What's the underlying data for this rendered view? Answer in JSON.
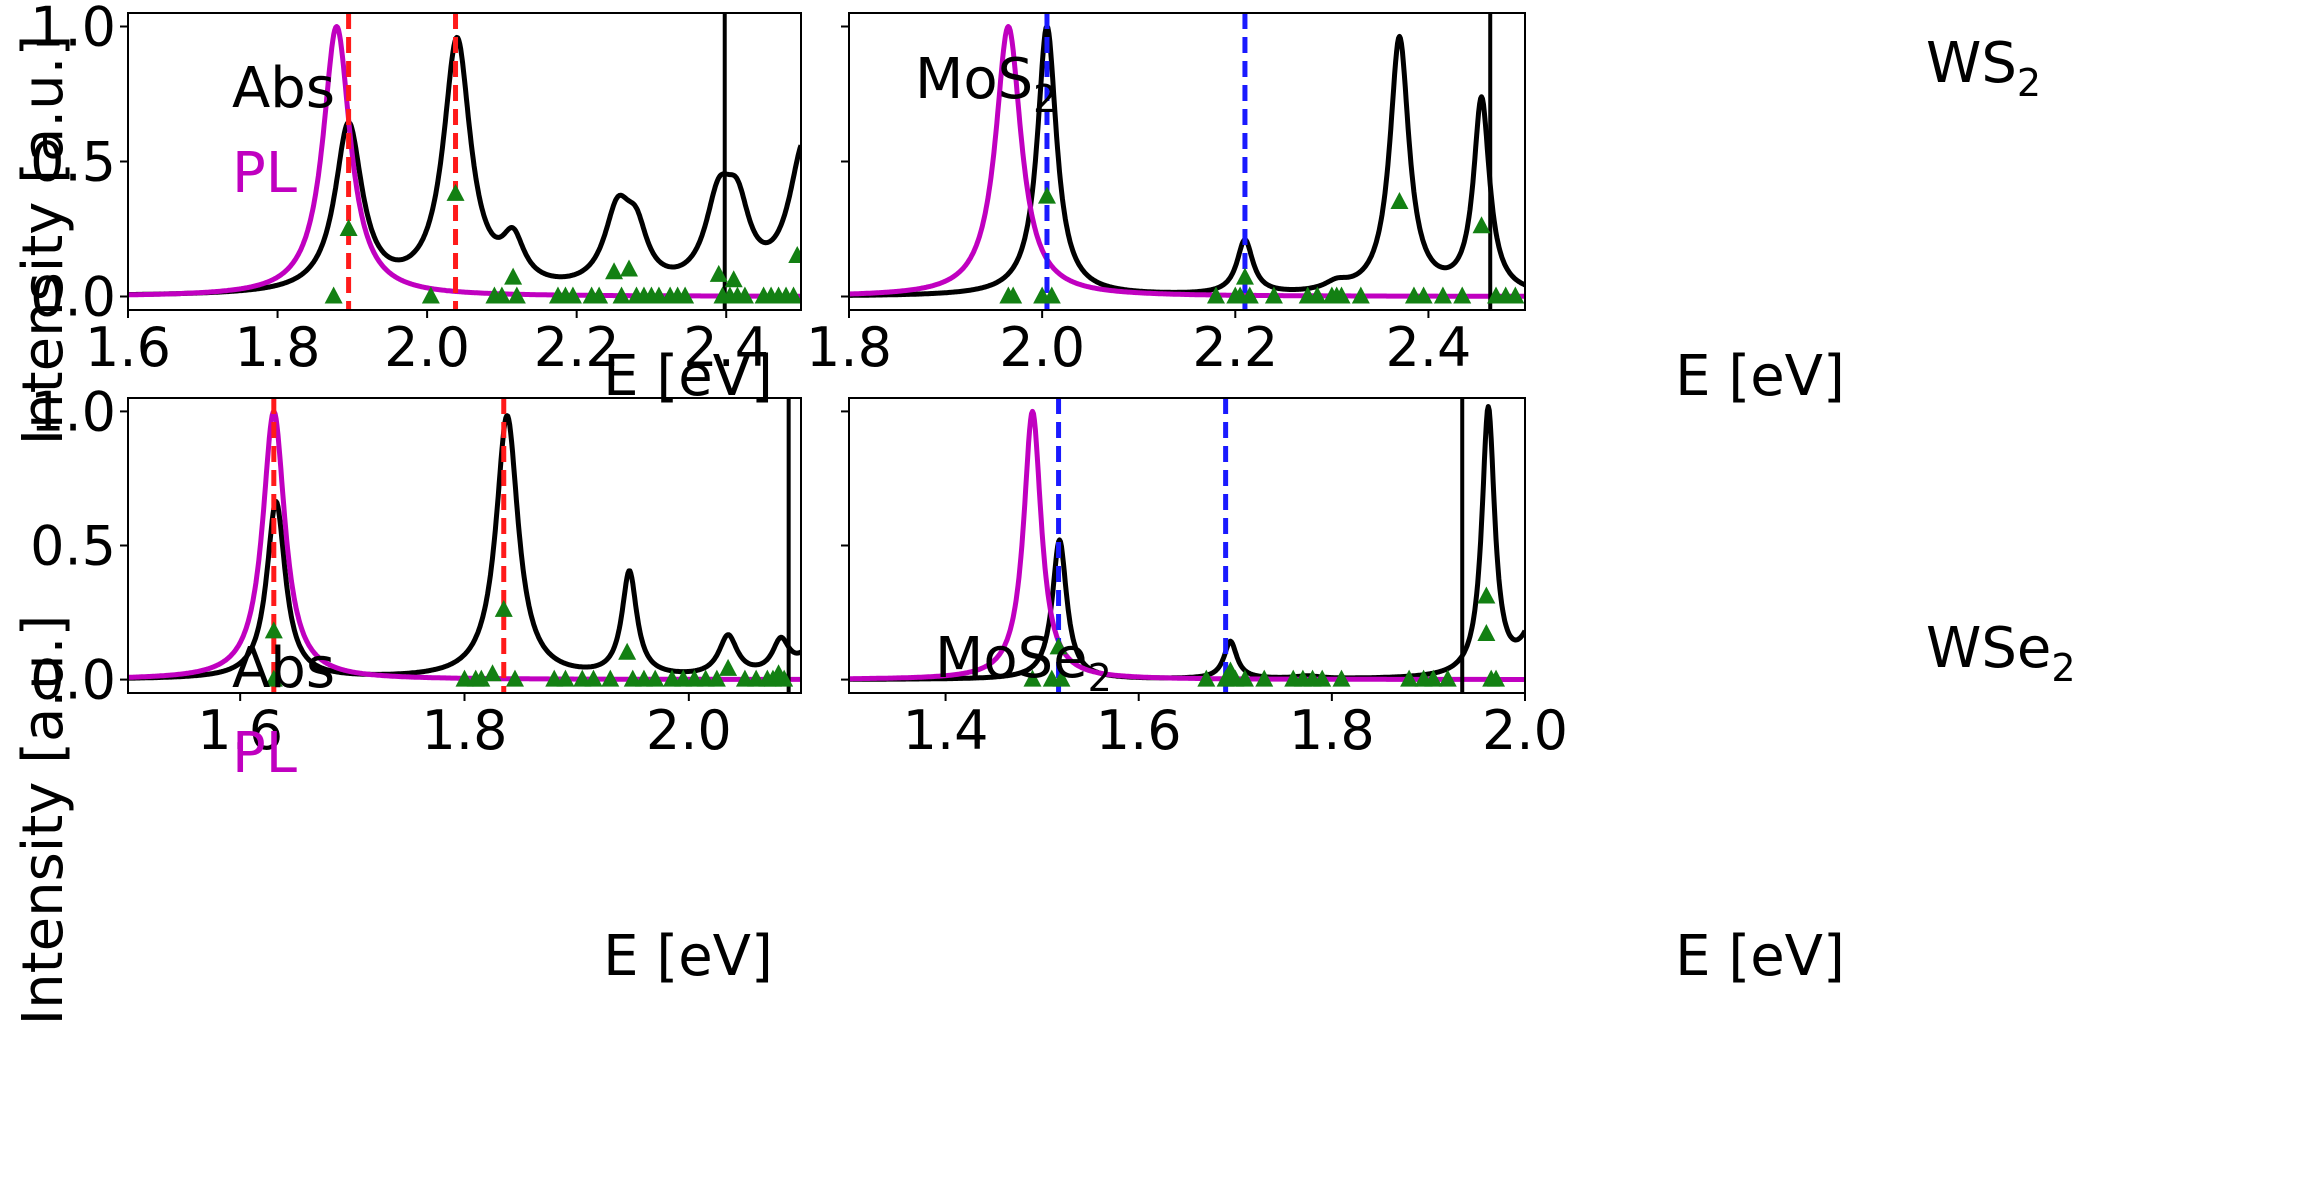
{
  "figure": {
    "ylabel": "Intensity [a.u.]",
    "xlabel": "E [eV]",
    "legend": {
      "abs": "Abs",
      "pl": "PL"
    }
  },
  "colors": {
    "abs": "#000000",
    "pl": "#c000c0",
    "marker": "#138013",
    "red_line": "#ff1a1a",
    "blue_line": "#1a1aff"
  },
  "chart_data": [
    {
      "type": "line",
      "material": "MoS",
      "subscript": "2",
      "xlabel": "E [eV]",
      "ylabel": "Intensity [a.u.]",
      "xlim": [
        1.6,
        2.5
      ],
      "ylim": [
        -0.05,
        1.05
      ],
      "xticks": [
        1.6,
        1.8,
        2.0,
        2.2,
        2.4
      ],
      "xtick_labels": [
        "1.6",
        "1.8",
        "2.0",
        "2.2",
        "2.4"
      ],
      "yticks": [
        0.0,
        0.5,
        1.0
      ],
      "ytick_labels": [
        "0.0",
        "0.5",
        "1.0"
      ],
      "show_ylabels": true,
      "legend": "top-left",
      "abs_peaks": [
        [
          1.895,
          0.62,
          0.022
        ],
        [
          2.04,
          0.93,
          0.022
        ],
        [
          2.115,
          0.16,
          0.018
        ],
        [
          2.255,
          0.28,
          0.022
        ],
        [
          2.28,
          0.17,
          0.018
        ],
        [
          2.39,
          0.3,
          0.022
        ],
        [
          2.415,
          0.25,
          0.02
        ],
        [
          2.505,
          0.55,
          0.025
        ]
      ],
      "pl_peak": [
        1.879,
        1.0,
        0.022
      ],
      "dashed_lines": [
        {
          "x": 1.895,
          "color": "red"
        },
        {
          "x": 2.038,
          "color": "red"
        }
      ],
      "solid_lines": [
        2.398
      ],
      "markers": [
        [
          1.875,
          0.0
        ],
        [
          1.895,
          0.25
        ],
        [
          2.005,
          0.0
        ],
        [
          2.038,
          0.38
        ],
        [
          2.09,
          0.0
        ],
        [
          2.1,
          0.0
        ],
        [
          2.115,
          0.07
        ],
        [
          2.12,
          0.0
        ],
        [
          2.175,
          0.0
        ],
        [
          2.185,
          0.0
        ],
        [
          2.195,
          0.0
        ],
        [
          2.22,
          0.0
        ],
        [
          2.23,
          0.0
        ],
        [
          2.25,
          0.09
        ],
        [
          2.26,
          0.0
        ],
        [
          2.27,
          0.1
        ],
        [
          2.28,
          0.0
        ],
        [
          2.29,
          0.0
        ],
        [
          2.3,
          0.0
        ],
        [
          2.31,
          0.0
        ],
        [
          2.325,
          0.0
        ],
        [
          2.335,
          0.0
        ],
        [
          2.345,
          0.0
        ],
        [
          2.39,
          0.08
        ],
        [
          2.395,
          0.0
        ],
        [
          2.405,
          0.0
        ],
        [
          2.41,
          0.06
        ],
        [
          2.415,
          0.0
        ],
        [
          2.425,
          0.0
        ],
        [
          2.45,
          0.0
        ],
        [
          2.46,
          0.0
        ],
        [
          2.47,
          0.0
        ],
        [
          2.48,
          0.0
        ],
        [
          2.49,
          0.0
        ],
        [
          2.495,
          0.15
        ]
      ]
    },
    {
      "type": "line",
      "material": "WS",
      "subscript": "2",
      "xlabel": "E [eV]",
      "ylabel": "Intensity [a.u.]",
      "xlim": [
        1.8,
        2.5
      ],
      "ylim": [
        -0.05,
        1.05
      ],
      "xticks": [
        1.8,
        2.0,
        2.2,
        2.4
      ],
      "xtick_labels": [
        "1.8",
        "2.0",
        "2.2",
        "2.4"
      ],
      "yticks": [
        0.0,
        0.5,
        1.0
      ],
      "ytick_labels": [
        "0.0",
        "0.5",
        "1.0"
      ],
      "show_ylabels": false,
      "legend": "none",
      "abs_peaks": [
        [
          2.005,
          1.0,
          0.012
        ],
        [
          2.21,
          0.2,
          0.01
        ],
        [
          2.305,
          0.03,
          0.015
        ],
        [
          2.37,
          0.95,
          0.012
        ],
        [
          2.455,
          0.72,
          0.01
        ]
      ],
      "pl_peak": [
        1.965,
        1.0,
        0.016
      ],
      "dashed_lines": [
        {
          "x": 2.005,
          "color": "blue"
        },
        {
          "x": 2.21,
          "color": "blue"
        }
      ],
      "solid_lines": [
        2.464
      ],
      "markers": [
        [
          1.965,
          0.0
        ],
        [
          1.97,
          0.0
        ],
        [
          2.0,
          0.0
        ],
        [
          2.005,
          0.37
        ],
        [
          2.01,
          0.0
        ],
        [
          2.18,
          0.0
        ],
        [
          2.2,
          0.0
        ],
        [
          2.205,
          0.0
        ],
        [
          2.21,
          0.07
        ],
        [
          2.215,
          0.0
        ],
        [
          2.24,
          0.0
        ],
        [
          2.275,
          0.0
        ],
        [
          2.285,
          0.0
        ],
        [
          2.3,
          0.0
        ],
        [
          2.305,
          0.0
        ],
        [
          2.31,
          0.0
        ],
        [
          2.33,
          0.0
        ],
        [
          2.37,
          0.35
        ],
        [
          2.385,
          0.0
        ],
        [
          2.395,
          0.0
        ],
        [
          2.415,
          0.0
        ],
        [
          2.435,
          0.0
        ],
        [
          2.455,
          0.26
        ],
        [
          2.47,
          0.0
        ],
        [
          2.48,
          0.0
        ],
        [
          2.49,
          0.0
        ]
      ]
    },
    {
      "type": "line",
      "material": "MoSe",
      "subscript": "2",
      "xlabel": "E [eV]",
      "ylabel": "Intensity [a.u.]",
      "xlim": [
        1.5,
        2.1
      ],
      "ylim": [
        -0.05,
        1.05
      ],
      "xticks": [
        1.6,
        1.8,
        2.0
      ],
      "xtick_labels": [
        "1.6",
        "1.8",
        "2.0"
      ],
      "yticks": [
        0.0,
        0.5,
        1.0
      ],
      "ytick_labels": [
        "0.0",
        "0.5",
        "1.0"
      ],
      "show_ylabels": true,
      "legend": "top-left",
      "abs_peaks": [
        [
          1.632,
          0.66,
          0.01
        ],
        [
          1.838,
          0.98,
          0.012
        ],
        [
          1.947,
          0.39,
          0.008
        ],
        [
          2.035,
          0.15,
          0.01
        ],
        [
          2.082,
          0.12,
          0.009
        ],
        [
          2.12,
          0.2,
          0.015
        ]
      ],
      "pl_peak": [
        1.63,
        1.0,
        0.012
      ],
      "dashed_lines": [
        {
          "x": 1.63,
          "color": "red"
        },
        {
          "x": 1.835,
          "color": "red"
        }
      ],
      "solid_lines": [
        2.089
      ],
      "markers": [
        [
          1.63,
          0.0
        ],
        [
          1.63,
          0.18
        ],
        [
          1.8,
          0.0
        ],
        [
          1.81,
          0.0
        ],
        [
          1.815,
          0.0
        ],
        [
          1.825,
          0.02
        ],
        [
          1.835,
          0.26
        ],
        [
          1.845,
          0.0
        ],
        [
          1.88,
          0.0
        ],
        [
          1.89,
          0.0
        ],
        [
          1.905,
          0.0
        ],
        [
          1.915,
          0.0
        ],
        [
          1.93,
          0.0
        ],
        [
          1.945,
          0.1
        ],
        [
          1.95,
          0.0
        ],
        [
          1.96,
          0.0
        ],
        [
          1.97,
          0.0
        ],
        [
          1.985,
          0.0
        ],
        [
          1.995,
          0.0
        ],
        [
          2.005,
          0.0
        ],
        [
          2.015,
          0.0
        ],
        [
          2.025,
          0.0
        ],
        [
          2.035,
          0.04
        ],
        [
          2.05,
          0.0
        ],
        [
          2.06,
          0.0
        ],
        [
          2.07,
          0.0
        ],
        [
          2.075,
          0.0
        ],
        [
          2.08,
          0.02
        ],
        [
          2.085,
          0.0
        ]
      ]
    },
    {
      "type": "line",
      "material": "WSe",
      "subscript": "2",
      "xlabel": "E [eV]",
      "ylabel": "Intensity [a.u.]",
      "xlim": [
        1.3,
        2.0
      ],
      "ylim": [
        -0.05,
        1.05
      ],
      "xticks": [
        1.4,
        1.6,
        1.8,
        2.0
      ],
      "xtick_labels": [
        "1.4",
        "1.6",
        "1.8",
        "2.0"
      ],
      "yticks": [
        0.0,
        0.5,
        1.0
      ],
      "ytick_labels": [
        "0.0",
        "0.5",
        "1.0"
      ],
      "show_ylabels": false,
      "legend": "none",
      "abs_peaks": [
        [
          1.518,
          0.52,
          0.009
        ],
        [
          1.695,
          0.14,
          0.008
        ],
        [
          1.775,
          0.01,
          0.015
        ],
        [
          1.962,
          1.0,
          0.008
        ],
        [
          2.01,
          0.2,
          0.015
        ]
      ],
      "pl_peak": [
        1.49,
        1.0,
        0.011
      ],
      "dashed_lines": [
        {
          "x": 1.517,
          "color": "blue"
        },
        {
          "x": 1.69,
          "color": "blue"
        }
      ],
      "solid_lines": [
        1.935
      ],
      "markers": [
        [
          1.49,
          0.0
        ],
        [
          1.51,
          0.0
        ],
        [
          1.517,
          0.12
        ],
        [
          1.52,
          0.0
        ],
        [
          1.67,
          0.0
        ],
        [
          1.69,
          0.0
        ],
        [
          1.695,
          0.03
        ],
        [
          1.7,
          0.0
        ],
        [
          1.71,
          0.0
        ],
        [
          1.73,
          0.0
        ],
        [
          1.76,
          0.0
        ],
        [
          1.77,
          0.0
        ],
        [
          1.78,
          0.0
        ],
        [
          1.79,
          0.0
        ],
        [
          1.81,
          0.0
        ],
        [
          1.88,
          0.0
        ],
        [
          1.895,
          0.0
        ],
        [
          1.905,
          0.0
        ],
        [
          1.92,
          0.0
        ],
        [
          1.96,
          0.31
        ],
        [
          1.96,
          0.17
        ],
        [
          1.965,
          0.0
        ],
        [
          1.97,
          0.0
        ]
      ]
    }
  ]
}
